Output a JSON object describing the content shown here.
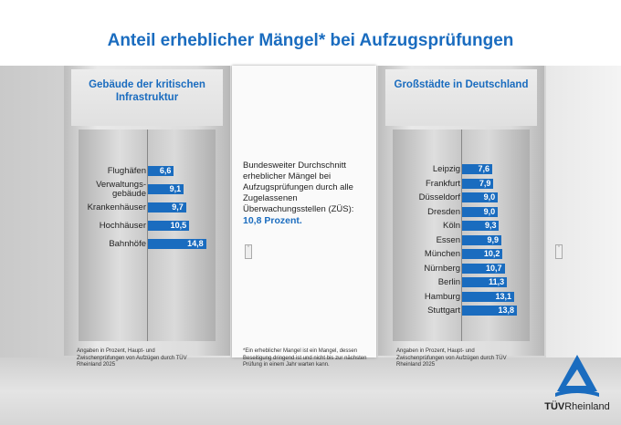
{
  "title": "Anteil erheblicher Mängel* bei Aufzugsprüfungen",
  "chart_data": [
    {
      "type": "bar",
      "orientation": "horizontal",
      "title": "Gebäude der kritischen Infrastruktur",
      "categories": [
        "Flughäfen",
        "Verwaltungs-gebäude",
        "Krankenhäuser",
        "Hochhäuser",
        "Bahnhöfe"
      ],
      "values": [
        6.6,
        9.1,
        9.7,
        10.5,
        14.8
      ],
      "value_labels": [
        "6,6",
        "9,1",
        "9,7",
        "10,5",
        "14,8"
      ],
      "color": "#1a6cbf",
      "note": "Angaben in Prozent, Haupt- und Zwischenprüfungen von Aufzügen durch TÜV Rheinland 2025"
    },
    {
      "type": "bar",
      "orientation": "horizontal",
      "title": "Großstädte in Deutschland",
      "categories": [
        "Leipzig",
        "Frankfurt",
        "Düsseldorf",
        "Dresden",
        "Köln",
        "Essen",
        "München",
        "Nürnberg",
        "Berlin",
        "Hamburg",
        "Stuttgart"
      ],
      "values": [
        7.6,
        7.9,
        9.0,
        9.0,
        9.3,
        9.9,
        10.2,
        10.7,
        11.3,
        13.1,
        13.8
      ],
      "value_labels": [
        "7,6",
        "7,9",
        "9,0",
        "9,0",
        "9,3",
        "9,9",
        "10,2",
        "10,7",
        "11,3",
        "13,1",
        "13,8"
      ],
      "color": "#1a6cbf",
      "note": "Angaben in Prozent, Haupt- und Zwischenprüfungen von Aufzügen durch TÜV Rheinland 2025"
    }
  ],
  "middle": {
    "text": "Bundesweiter Durchschnitt erheblicher Mängel bei Aufzugsprüfungen durch alle Zugelassenen Überwachungsstellen (ZÜS):",
    "highlight": "10,8 Prozent.",
    "footnote": "*Ein erheblicher Mangel ist ein Mangel, dessen Beseitigung dringend ist und nicht bis zur nächsten Prüfung in einem Jahr warten kann."
  },
  "logo": {
    "text": "TÜV Rheinland",
    "color": "#1a6cbf"
  }
}
